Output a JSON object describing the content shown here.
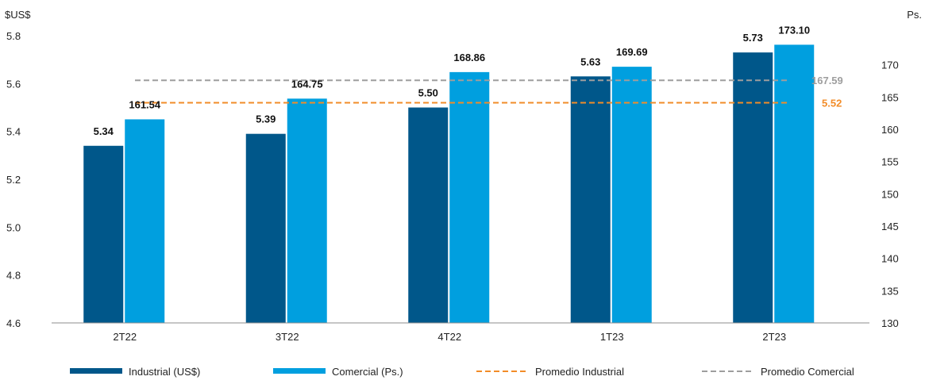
{
  "chart_data": {
    "type": "bar",
    "categories": [
      "2T22",
      "3T22",
      "4T22",
      "1T23",
      "2T23"
    ],
    "series": [
      {
        "name": "Industrial (US$)",
        "axis": "left",
        "color": "#00578A",
        "values": [
          5.34,
          5.39,
          5.5,
          5.63,
          5.73
        ],
        "labels": [
          "5.34",
          "5.39",
          "5.50",
          "5.63",
          "5.73"
        ]
      },
      {
        "name": "Comercial (Ps.)",
        "axis": "right",
        "color": "#009FDF",
        "values": [
          161.54,
          164.75,
          168.86,
          169.69,
          173.1
        ],
        "labels": [
          "161.54",
          "164.75",
          "168.86",
          "169.69",
          "173.10"
        ]
      }
    ],
    "reference_lines": [
      {
        "name": "Promedio Industrial",
        "axis": "left",
        "value": 5.52,
        "label": "5.52",
        "color": "#F28C28",
        "style": "dashed"
      },
      {
        "name": "Promedio Comercial",
        "axis": "right",
        "value": 167.59,
        "label": "167.59",
        "color": "#9E9E9E",
        "style": "dashed"
      }
    ],
    "y_left": {
      "unit": "$US$",
      "ylim": [
        4.6,
        5.8
      ],
      "ticks": [
        "4.6",
        "4.8",
        "5.0",
        "5.2",
        "5.4",
        "5.6",
        "5.8"
      ]
    },
    "y_right": {
      "unit": "Ps.",
      "ylim": [
        130,
        174.5
      ],
      "ticks": [
        "130",
        "135",
        "140",
        "145",
        "150",
        "155",
        "160",
        "165",
        "170"
      ]
    },
    "grid": false,
    "legend_position": "bottom"
  }
}
